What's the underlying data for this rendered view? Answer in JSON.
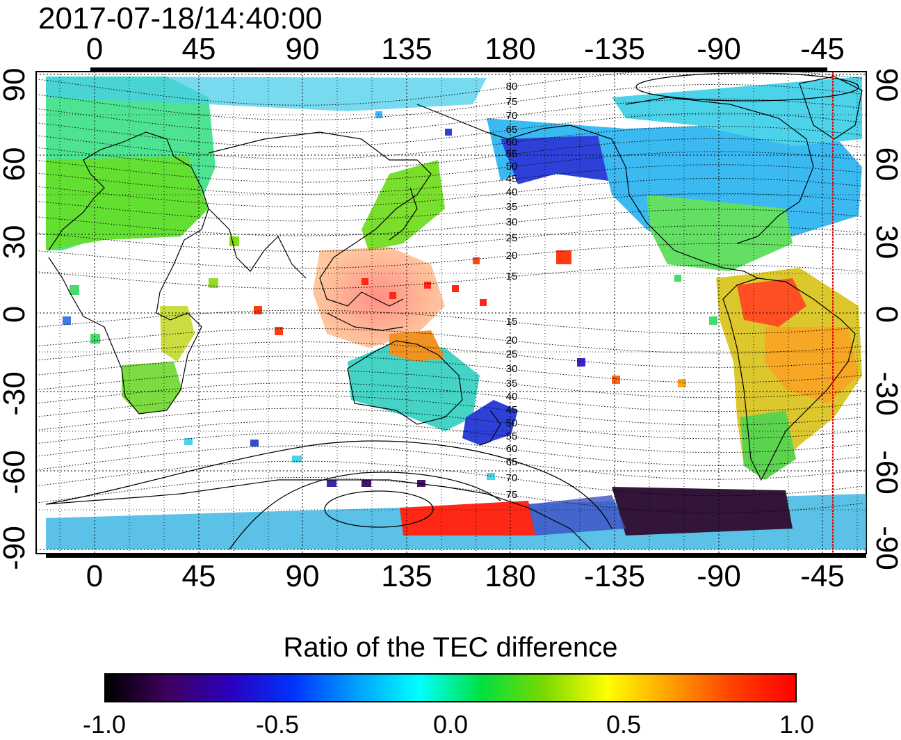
{
  "title": "2017-07-18/14:40:00",
  "colors": {
    "high_ratio": "#ff1400",
    "positive_ratio": "#f7c200",
    "neutral_ratio": "#21e032",
    "negative_ratio": "#2ab3f0",
    "strong_negative": "#1b31d6",
    "coastline": "#000000",
    "marker_line": "#e00000"
  },
  "axes": {
    "top_ticks": [
      "0",
      "45",
      "90",
      "135",
      "180",
      "-135",
      "-90",
      "-45"
    ],
    "bottom_ticks": [
      "0",
      "45",
      "90",
      "135",
      "180",
      "-135",
      "-90",
      "-45"
    ],
    "left_ticks": [
      "90",
      "60",
      "30",
      "0",
      "-30",
      "-60",
      "-90"
    ],
    "right_ticks": [
      "90",
      "60",
      "30",
      "0",
      "-30",
      "-60",
      "-90"
    ]
  },
  "magnetic_contour_labels": [
    "80",
    "75",
    "70",
    "65",
    "60",
    "55",
    "50",
    "45",
    "40",
    "35",
    "30",
    "25",
    "20",
    "15",
    "15",
    "20",
    "25",
    "30",
    "35",
    "40",
    "45",
    "50",
    "55",
    "60",
    "65",
    "70",
    "75"
  ],
  "colorbar": {
    "title": "Ratio of the TEC difference",
    "ticks": [
      "-1.0",
      "-0.5",
      "0.0",
      "0.5",
      "1.0"
    ],
    "range": [
      -1.0,
      1.0
    ],
    "stops": [
      "#000000",
      "#400060",
      "#2a00c0",
      "#0033ff",
      "#00a0ff",
      "#00ffff",
      "#00e040",
      "#7ad900",
      "#ffff00",
      "#ffa000",
      "#ff4000",
      "#ff0000"
    ]
  },
  "marker_longitude": -50
}
